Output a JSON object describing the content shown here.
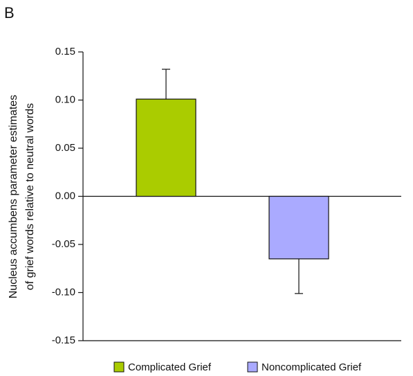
{
  "chart_data": {
    "type": "bar",
    "panel_label": "B",
    "ylabel": [
      "Nucleus accumbens parameter estimates",
      "of grief words relative to neutral words"
    ],
    "series": [
      {
        "name": "Complicated Grief",
        "color": "#aacc00",
        "values": [
          0.101
        ],
        "errors": [
          0.031
        ]
      },
      {
        "name": "Noncomplicated Grief",
        "color": "#aaaaff",
        "values": [
          -0.065
        ],
        "errors": [
          0.036
        ]
      }
    ],
    "ylim": [
      -0.15,
      0.15
    ],
    "yticks": [
      0.15,
      {
        "value": 0.1,
        "label": "0.10"
      },
      0.05,
      {
        "value": 0,
        "label": "0.00"
      },
      -0.05,
      {
        "value": -0.1,
        "label": "-0.10"
      },
      -0.15
    ],
    "legend": "bottom"
  }
}
